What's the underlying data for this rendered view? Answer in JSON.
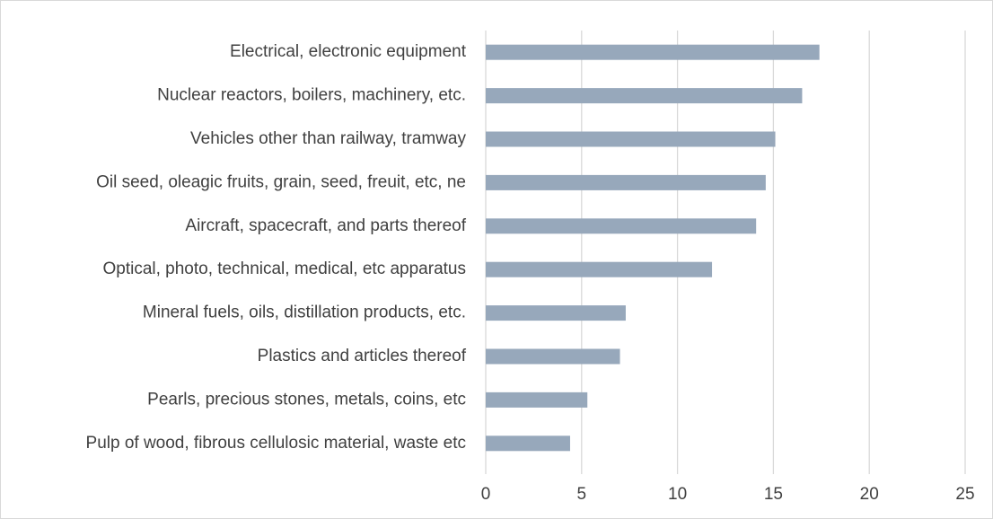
{
  "chart_data": {
    "type": "barh",
    "categories": [
      "Electrical, electronic equipment",
      "Nuclear reactors, boilers, machinery, etc.",
      "Vehicles other than railway, tramway",
      "Oil seed, oleagic fruits, grain, seed, freuit, etc, ne",
      "Aircraft, spacecraft, and parts thereof",
      "Optical, photo, technical, medical, etc apparatus",
      "Mineral fuels, oils, distillation products, etc.",
      "Plastics and articles thereof",
      "Pearls, precious stones, metals, coins, etc",
      "Pulp of wood, fibrous cellulosic material, waste etc"
    ],
    "values": [
      17.4,
      16.5,
      15.1,
      14.6,
      14.1,
      11.8,
      7.3,
      7.0,
      5.3,
      4.4
    ],
    "color": "#97a8bb",
    "xlim": [
      0,
      25
    ],
    "xticks": [
      0,
      5,
      10,
      15,
      20,
      25
    ],
    "grid": true
  }
}
